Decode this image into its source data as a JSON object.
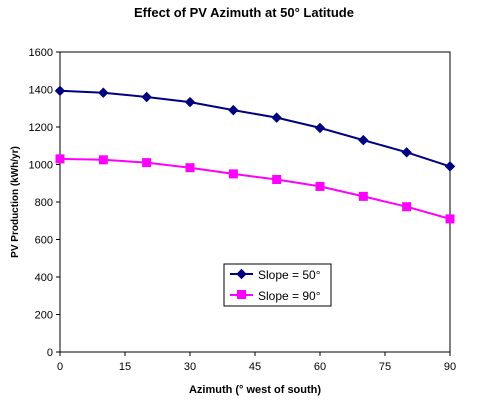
{
  "chart_data": {
    "type": "line",
    "title": "Effect of PV Azimuth at 50° Latitude",
    "xlabel": "Azimuth (° west of south)",
    "ylabel": "PV Production (kWh/yr)",
    "xlim": [
      0,
      90
    ],
    "ylim": [
      0,
      1600
    ],
    "xticks": [
      0,
      15,
      30,
      45,
      60,
      75,
      90
    ],
    "yticks": [
      0,
      200,
      400,
      600,
      800,
      1000,
      1200,
      1400,
      1600
    ],
    "x": [
      0,
      10,
      20,
      30,
      40,
      50,
      60,
      70,
      80,
      90
    ],
    "series": [
      {
        "name": "Slope = 50°",
        "color": "#000080",
        "marker": "diamond",
        "values": [
          1393,
          1383,
          1360,
          1333,
          1290,
          1250,
          1195,
          1130,
          1065,
          990
        ]
      },
      {
        "name": "Slope = 90°",
        "color": "#ff00ff",
        "marker": "square",
        "values": [
          1030,
          1025,
          1010,
          983,
          950,
          920,
          883,
          830,
          775,
          710
        ]
      }
    ],
    "grid": false,
    "legend_position": "center-right"
  }
}
